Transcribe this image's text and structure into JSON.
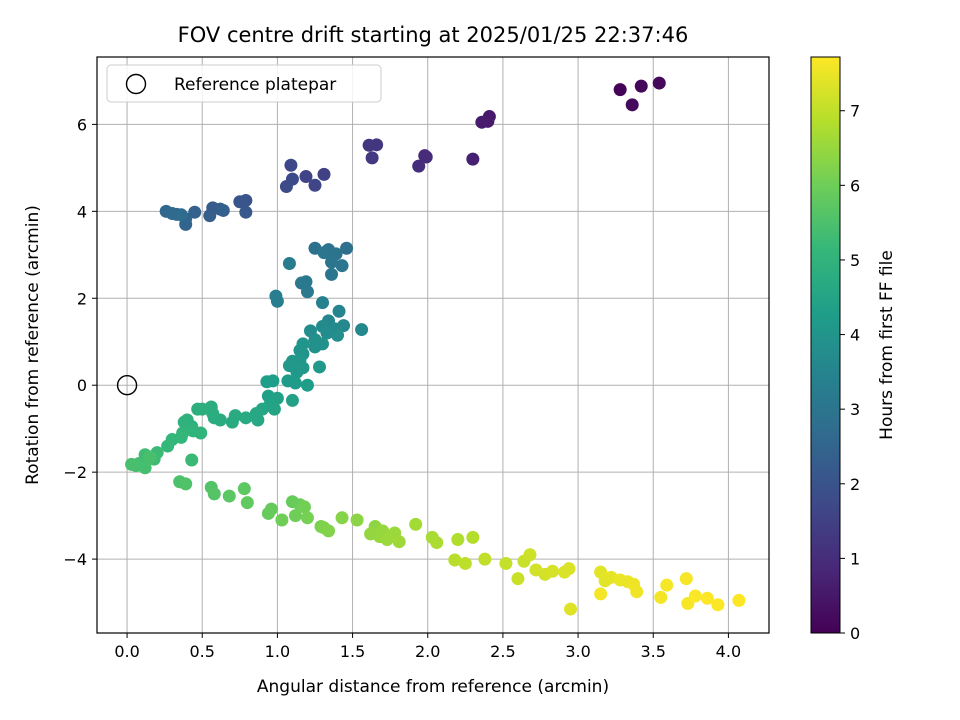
{
  "chart_data": {
    "type": "scatter",
    "title": "FOV centre drift starting at 2025/01/25 22:37:46",
    "xlabel": "Angular distance from reference (arcmin)",
    "ylabel": "Rotation from reference (arcmin)",
    "xlim": [
      -0.2,
      4.27
    ],
    "ylim": [
      -5.7,
      7.55
    ],
    "xticks": [
      "0.0",
      "0.5",
      "1.0",
      "1.5",
      "2.0",
      "2.5",
      "3.0",
      "3.5",
      "4.0"
    ],
    "yticks": [
      "−4",
      "−2",
      "0",
      "2",
      "4",
      "6"
    ],
    "grid": true,
    "legend": {
      "position": "top-left",
      "entries": [
        "Reference platepar"
      ]
    },
    "reference_point": {
      "x": 0.0,
      "y": 0.0
    },
    "colorbar": {
      "label": "Hours from first FF file",
      "range": [
        0,
        7.72
      ],
      "ticks": [
        "0",
        "1",
        "2",
        "3",
        "4",
        "5",
        "6",
        "7"
      ],
      "colormap": "viridis"
    },
    "colormap_stops": [
      "#440154",
      "#482878",
      "#3e4989",
      "#31688e",
      "#26828e",
      "#1f9e89",
      "#35b779",
      "#6ece58",
      "#b5de2b",
      "#fde725"
    ],
    "points": [
      [
        3.28,
        6.8,
        0.05
      ],
      [
        3.42,
        6.88,
        0.1
      ],
      [
        3.54,
        6.95,
        0.15
      ],
      [
        3.36,
        6.45,
        0.2
      ],
      [
        2.41,
        6.18,
        0.5
      ],
      [
        2.4,
        6.07,
        0.55
      ],
      [
        2.36,
        6.05,
        0.6
      ],
      [
        2.3,
        5.2,
        0.7
      ],
      [
        1.98,
        5.28,
        0.9
      ],
      [
        1.99,
        5.25,
        0.95
      ],
      [
        1.94,
        5.04,
        1.0
      ],
      [
        1.66,
        5.53,
        1.2
      ],
      [
        1.61,
        5.52,
        1.25
      ],
      [
        1.63,
        5.23,
        1.3
      ],
      [
        1.31,
        4.85,
        1.5
      ],
      [
        1.19,
        4.8,
        1.55
      ],
      [
        1.25,
        4.6,
        1.6
      ],
      [
        1.09,
        5.06,
        1.7
      ],
      [
        1.1,
        4.74,
        1.75
      ],
      [
        1.06,
        4.57,
        1.8
      ],
      [
        0.79,
        4.25,
        2.0
      ],
      [
        0.75,
        4.22,
        2.05
      ],
      [
        0.79,
        3.98,
        2.1
      ],
      [
        0.62,
        4.05,
        2.2
      ],
      [
        0.57,
        4.08,
        2.25
      ],
      [
        0.55,
        3.9,
        2.3
      ],
      [
        0.64,
        4.02,
        2.35
      ],
      [
        0.45,
        3.98,
        2.4
      ],
      [
        0.39,
        3.7,
        2.45
      ],
      [
        0.39,
        3.83,
        2.5
      ],
      [
        0.33,
        3.93,
        2.55
      ],
      [
        0.26,
        4.0,
        2.6
      ],
      [
        0.3,
        3.95,
        2.65
      ],
      [
        0.36,
        3.92,
        2.7
      ],
      [
        1.46,
        3.15,
        2.8
      ],
      [
        1.25,
        3.15,
        2.85
      ],
      [
        1.34,
        3.12,
        2.9
      ],
      [
        1.39,
        3.02,
        2.95
      ],
      [
        1.31,
        3.05,
        3.0
      ],
      [
        1.36,
        2.83,
        3.0
      ],
      [
        1.43,
        2.75,
        3.05
      ],
      [
        1.36,
        2.55,
        3.05
      ],
      [
        1.19,
        2.38,
        3.1
      ],
      [
        1.16,
        2.35,
        3.15
      ],
      [
        1.2,
        2.15,
        3.15
      ],
      [
        1.08,
        2.8,
        3.2
      ],
      [
        0.99,
        2.05,
        3.25
      ],
      [
        1.0,
        1.93,
        3.3
      ],
      [
        1.3,
        1.9,
        3.4
      ],
      [
        1.41,
        1.7,
        3.5
      ],
      [
        1.34,
        1.48,
        3.55
      ],
      [
        1.44,
        1.37,
        3.6
      ],
      [
        1.56,
        1.28,
        3.6
      ],
      [
        1.38,
        1.3,
        3.65
      ],
      [
        1.3,
        1.35,
        3.7
      ],
      [
        1.22,
        1.25,
        3.75
      ],
      [
        1.33,
        1.2,
        3.75
      ],
      [
        1.4,
        1.15,
        3.8
      ],
      [
        1.25,
        1.05,
        3.85
      ],
      [
        1.3,
        0.95,
        3.85
      ],
      [
        1.25,
        0.88,
        3.9
      ],
      [
        1.15,
        0.8,
        3.95
      ],
      [
        1.17,
        0.72,
        4.0
      ],
      [
        1.17,
        0.95,
        4.0
      ],
      [
        1.15,
        0.58,
        4.05
      ],
      [
        1.1,
        0.55,
        4.05
      ],
      [
        1.08,
        0.45,
        4.1
      ],
      [
        1.17,
        0.4,
        4.1
      ],
      [
        1.28,
        0.42,
        4.15
      ],
      [
        1.13,
        0.3,
        4.15
      ],
      [
        1.07,
        0.1,
        4.2
      ],
      [
        1.12,
        0.05,
        4.2
      ],
      [
        1.2,
        0.0,
        4.25
      ],
      [
        0.97,
        0.1,
        4.3
      ],
      [
        0.93,
        0.08,
        4.3
      ],
      [
        0.94,
        -0.25,
        4.35
      ],
      [
        1.0,
        -0.3,
        4.4
      ],
      [
        1.1,
        -0.35,
        4.4
      ],
      [
        0.95,
        -0.45,
        4.45
      ],
      [
        0.98,
        -0.55,
        4.5
      ],
      [
        0.9,
        -0.55,
        4.55
      ],
      [
        0.86,
        -0.65,
        4.6
      ],
      [
        0.87,
        -0.8,
        4.6
      ],
      [
        0.79,
        -0.75,
        4.65
      ],
      [
        0.72,
        -0.7,
        4.7
      ],
      [
        0.7,
        -0.85,
        4.7
      ],
      [
        0.62,
        -0.8,
        4.75
      ],
      [
        0.58,
        -0.75,
        4.75
      ],
      [
        0.57,
        -0.65,
        4.8
      ],
      [
        0.56,
        -0.5,
        4.8
      ],
      [
        0.47,
        -0.55,
        4.85
      ],
      [
        0.5,
        -0.55,
        4.85
      ],
      [
        0.4,
        -0.8,
        4.9
      ],
      [
        0.43,
        -0.95,
        4.9
      ],
      [
        0.38,
        -0.85,
        4.95
      ],
      [
        0.44,
        -1.05,
        5.0
      ],
      [
        0.49,
        -1.1,
        5.0
      ],
      [
        0.37,
        -1.1,
        5.05
      ],
      [
        0.3,
        -1.25,
        5.1
      ],
      [
        0.36,
        -1.2,
        5.1
      ],
      [
        0.27,
        -1.4,
        5.15
      ],
      [
        0.43,
        -1.72,
        5.2
      ],
      [
        0.2,
        -1.55,
        5.25
      ],
      [
        0.18,
        -1.7,
        5.3
      ],
      [
        0.12,
        -1.6,
        5.3
      ],
      [
        0.08,
        -1.8,
        5.35
      ],
      [
        0.06,
        -1.85,
        5.4
      ],
      [
        0.12,
        -1.9,
        5.4
      ],
      [
        0.15,
        -1.65,
        5.45
      ],
      [
        0.03,
        -1.82,
        5.45
      ],
      [
        0.35,
        -2.22,
        5.5
      ],
      [
        0.39,
        -2.27,
        5.55
      ],
      [
        0.56,
        -2.35,
        5.6
      ],
      [
        0.58,
        -2.5,
        5.65
      ],
      [
        0.68,
        -2.55,
        5.7
      ],
      [
        0.78,
        -2.38,
        5.75
      ],
      [
        0.8,
        -2.7,
        5.8
      ],
      [
        0.96,
        -2.85,
        5.85
      ],
      [
        0.94,
        -2.95,
        5.9
      ],
      [
        1.1,
        -2.68,
        5.9
      ],
      [
        1.15,
        -2.75,
        5.95
      ],
      [
        1.03,
        -3.1,
        6.0
      ],
      [
        1.12,
        -3.0,
        6.0
      ],
      [
        1.18,
        -2.8,
        6.05
      ],
      [
        1.2,
        -3.05,
        6.1
      ],
      [
        1.29,
        -3.25,
        6.15
      ],
      [
        1.31,
        -3.28,
        6.2
      ],
      [
        1.34,
        -3.35,
        6.25
      ],
      [
        1.43,
        -3.05,
        6.3
      ],
      [
        1.53,
        -3.1,
        6.35
      ],
      [
        1.65,
        -3.25,
        6.4
      ],
      [
        1.62,
        -3.42,
        6.45
      ],
      [
        1.68,
        -3.48,
        6.5
      ],
      [
        1.7,
        -3.35,
        6.5
      ],
      [
        1.73,
        -3.55,
        6.55
      ],
      [
        1.78,
        -3.4,
        6.55
      ],
      [
        1.81,
        -3.6,
        6.6
      ],
      [
        1.92,
        -3.2,
        6.65
      ],
      [
        2.03,
        -3.5,
        6.7
      ],
      [
        2.06,
        -3.62,
        6.75
      ],
      [
        2.2,
        -3.55,
        6.8
      ],
      [
        2.3,
        -3.5,
        6.85
      ],
      [
        2.18,
        -4.02,
        6.9
      ],
      [
        2.25,
        -4.1,
        6.95
      ],
      [
        2.38,
        -4.0,
        7.0
      ],
      [
        2.52,
        -4.1,
        7.05
      ],
      [
        2.6,
        -4.45,
        7.1
      ],
      [
        2.64,
        -4.05,
        7.1
      ],
      [
        2.68,
        -3.9,
        7.15
      ],
      [
        2.72,
        -4.25,
        7.2
      ],
      [
        2.78,
        -4.35,
        7.2
      ],
      [
        2.83,
        -4.28,
        7.25
      ],
      [
        2.91,
        -4.3,
        7.3
      ],
      [
        2.94,
        -4.22,
        7.3
      ],
      [
        2.95,
        -5.15,
        7.35
      ],
      [
        3.15,
        -4.3,
        7.4
      ],
      [
        3.18,
        -4.5,
        7.4
      ],
      [
        3.22,
        -4.42,
        7.45
      ],
      [
        3.28,
        -4.48,
        7.5
      ],
      [
        3.33,
        -4.52,
        7.5
      ],
      [
        3.37,
        -4.58,
        7.55
      ],
      [
        3.39,
        -4.75,
        7.55
      ],
      [
        3.15,
        -4.8,
        7.6
      ],
      [
        3.55,
        -4.88,
        7.6
      ],
      [
        3.59,
        -4.6,
        7.62
      ],
      [
        3.72,
        -4.45,
        7.65
      ],
      [
        3.73,
        -5.02,
        7.65
      ],
      [
        3.78,
        -4.85,
        7.68
      ],
      [
        3.86,
        -4.9,
        7.7
      ],
      [
        3.93,
        -5.05,
        7.7
      ],
      [
        4.07,
        -4.95,
        7.72
      ]
    ]
  }
}
